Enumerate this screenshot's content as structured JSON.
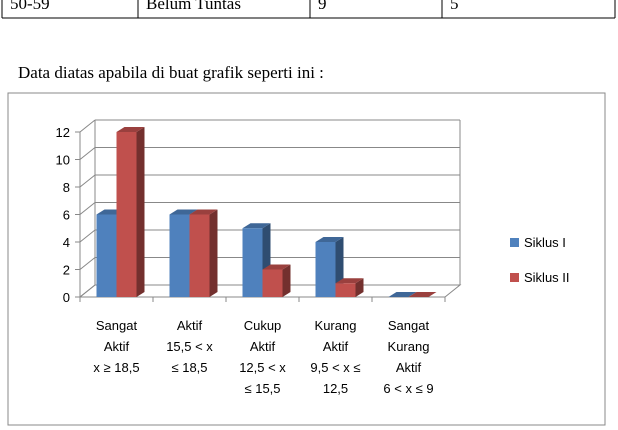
{
  "table": {
    "row": [
      "50-59",
      "Belum Tuntas",
      "9",
      "5"
    ]
  },
  "text": "Data diatas apabila di buat grafik seperti ini :",
  "chart_data": {
    "type": "bar3d",
    "categories": [
      [
        "Sangat",
        "Aktif",
        "x ≥ 18,5"
      ],
      [
        "Aktif",
        "15,5 < x",
        "≤ 18,5"
      ],
      [
        "Cukup",
        "Aktif",
        "12,5 < x",
        "≤ 15,5"
      ],
      [
        "Kurang",
        "Aktif",
        "9,5 < x ≤",
        "12,5"
      ],
      [
        "Sangat",
        "Kurang",
        "Aktif",
        "6 < x ≤ 9"
      ]
    ],
    "series": [
      {
        "name": "Siklus I",
        "color": "#4f81bd",
        "values": [
          6,
          6,
          5,
          4,
          0
        ]
      },
      {
        "name": "Siklus II",
        "color": "#c0504d",
        "values": [
          12,
          6,
          2,
          1,
          0
        ]
      }
    ],
    "ylim": [
      0,
      12
    ],
    "yticks": [
      0,
      2,
      4,
      6,
      8,
      10,
      12
    ],
    "grid": true,
    "legend": "right"
  }
}
